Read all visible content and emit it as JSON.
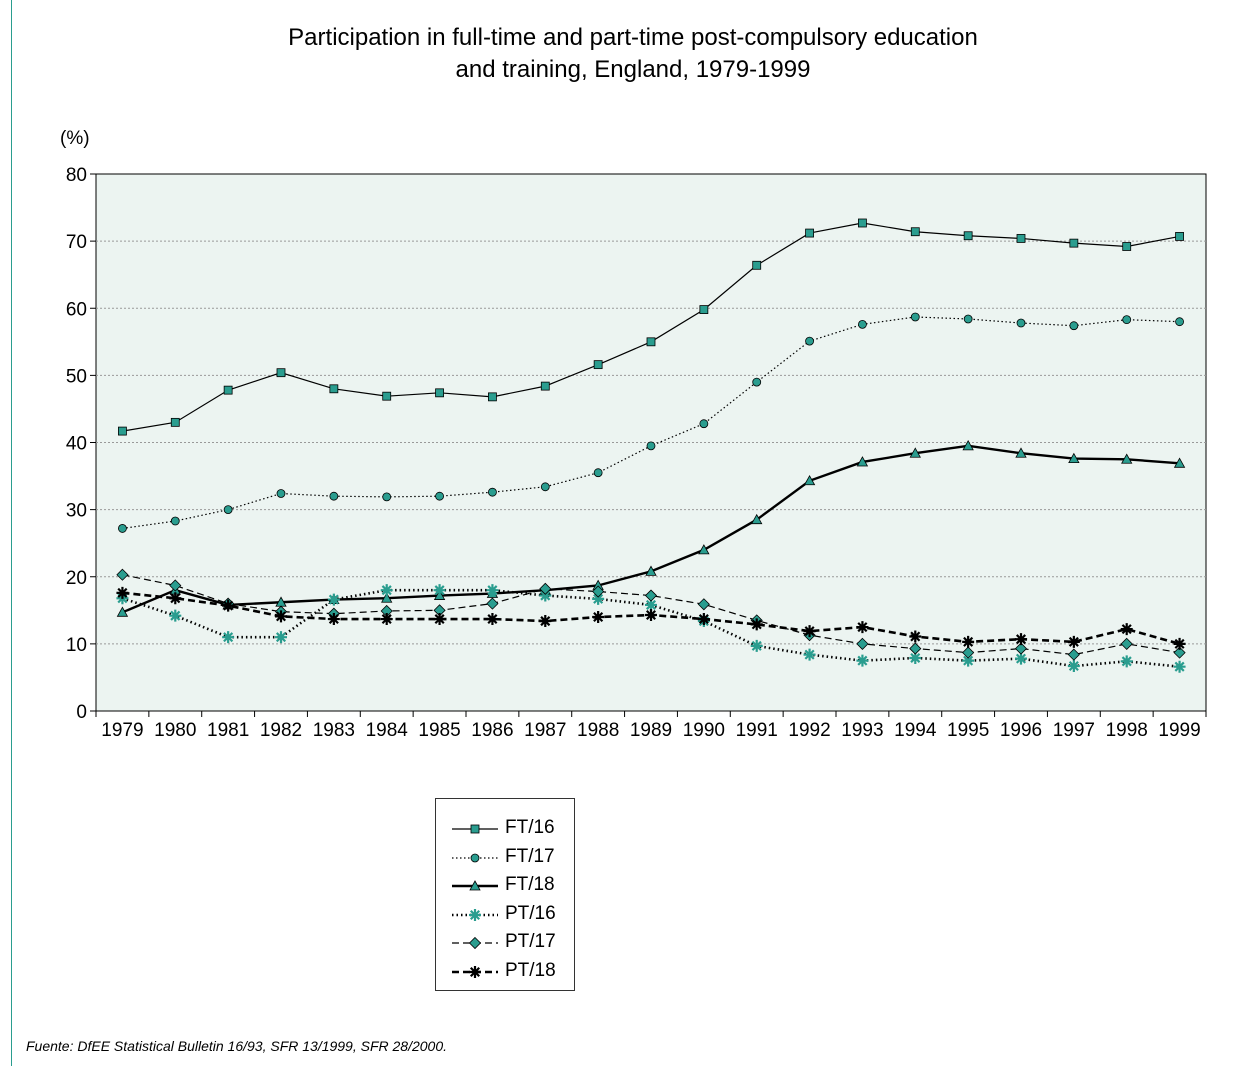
{
  "chart_data": {
    "type": "line",
    "title": "Participation in full-time and part-time post-compulsory education",
    "subtitle": "and training, England, 1979-1999",
    "ylabel": "(%)",
    "xlabel": "",
    "ylim": [
      0,
      80
    ],
    "yticks": [
      "0",
      "10",
      "20",
      "30",
      "40",
      "50",
      "60",
      "70",
      "80"
    ],
    "grid": true,
    "legend_position": "bottom-center",
    "plot_background": "#ecf4f1",
    "marker_color": "#2a9d8f",
    "x": [
      "1979",
      "1980",
      "1981",
      "1982",
      "1983",
      "1984",
      "1985",
      "1986",
      "1987",
      "1988",
      "1989",
      "1990",
      "1991",
      "1992",
      "1993",
      "1994",
      "1995",
      "1996",
      "1997",
      "1998",
      "1999"
    ],
    "series": [
      {
        "name": "FT/16",
        "marker": "square",
        "line": "solid-thin",
        "values": [
          41.7,
          43.0,
          47.8,
          50.4,
          48.0,
          46.9,
          47.4,
          46.8,
          48.4,
          51.6,
          55.0,
          59.8,
          66.4,
          71.2,
          72.7,
          71.4,
          70.8,
          70.4,
          69.7,
          69.2,
          70.7
        ]
      },
      {
        "name": "FT/17",
        "marker": "circle",
        "line": "dotted-thin",
        "values": [
          27.2,
          28.3,
          30.0,
          32.4,
          32.0,
          31.9,
          32.0,
          32.6,
          33.4,
          35.5,
          39.5,
          42.8,
          49.0,
          55.1,
          57.6,
          58.7,
          58.4,
          57.8,
          57.4,
          58.3,
          58.0
        ]
      },
      {
        "name": "FT/18",
        "marker": "triangle",
        "line": "solid-thick",
        "values": [
          14.7,
          18.0,
          15.8,
          16.2,
          16.6,
          16.8,
          17.2,
          17.5,
          18.0,
          18.7,
          20.8,
          24.0,
          28.5,
          34.3,
          37.1,
          38.4,
          39.5,
          38.4,
          37.6,
          37.5,
          36.9
        ]
      },
      {
        "name": "PT/16",
        "marker": "star",
        "line": "dotted-thick",
        "values": [
          16.8,
          14.2,
          11.0,
          11.0,
          16.6,
          18.0,
          18.0,
          18.0,
          17.2,
          16.7,
          15.8,
          13.4,
          9.7,
          8.4,
          7.5,
          7.9,
          7.5,
          7.8,
          6.7,
          7.4,
          6.6
        ]
      },
      {
        "name": "PT/17",
        "marker": "diamond",
        "line": "dashed-thin",
        "values": [
          20.3,
          18.7,
          16.0,
          14.8,
          14.5,
          14.9,
          15.0,
          16.0,
          18.2,
          17.8,
          17.2,
          15.9,
          13.5,
          11.3,
          10.0,
          9.3,
          8.7,
          9.3,
          8.4,
          10.0,
          8.7
        ]
      },
      {
        "name": "PT/18",
        "marker": "asterisk",
        "line": "dashed-thick",
        "values": [
          17.6,
          16.8,
          15.7,
          14.1,
          13.7,
          13.7,
          13.7,
          13.7,
          13.4,
          14.0,
          14.3,
          13.7,
          12.9,
          11.9,
          12.5,
          11.1,
          10.3,
          10.7,
          10.3,
          12.2,
          10.0
        ]
      }
    ]
  },
  "source": "Fuente: DfEE Statistical Bulletin 16/93, SFR 13/1999, SFR 28/2000."
}
